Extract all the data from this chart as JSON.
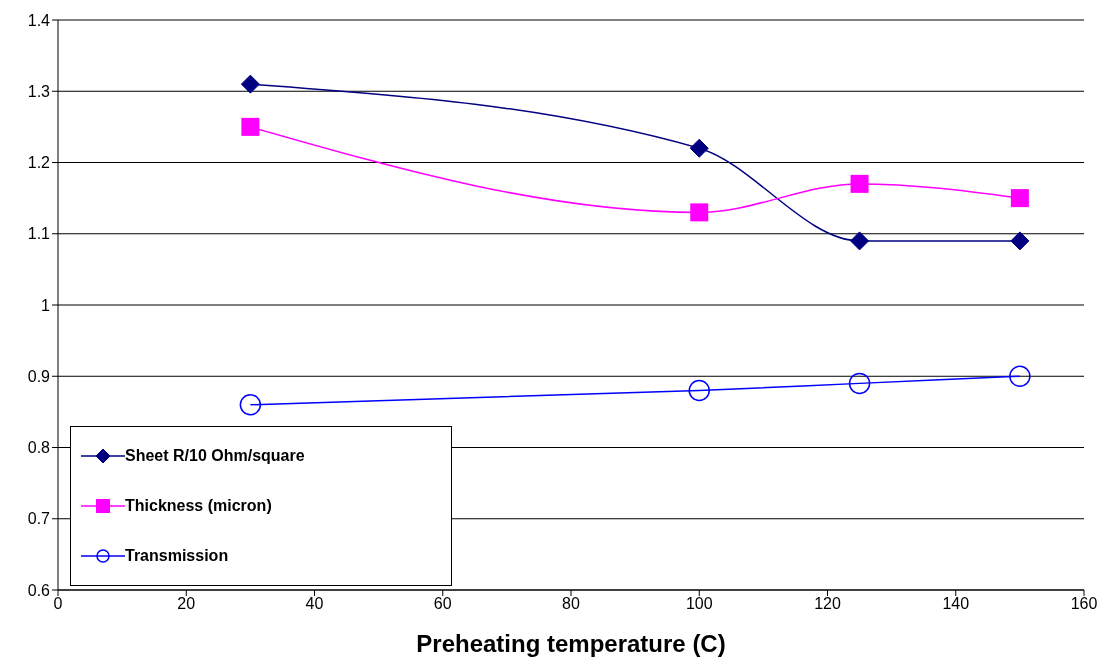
{
  "chart_data": {
    "type": "line",
    "xlabel": "Preheating temperature (C)",
    "xlim": [
      0,
      160
    ],
    "xticks": [
      0,
      20,
      40,
      60,
      80,
      100,
      120,
      140,
      160
    ],
    "ylim": [
      0.6,
      1.4
    ],
    "yticks": [
      0.6,
      0.7,
      0.8,
      0.9,
      1,
      1.1,
      1.2,
      1.3,
      1.4
    ],
    "grid": "y",
    "legend": "bottom left",
    "line_style": "solid",
    "series": [
      {
        "name": "Sheet R/10 Ohm/square",
        "color": "#000080",
        "marker": "diamond",
        "x": [
          30,
          100,
          125,
          150
        ],
        "values": [
          1.31,
          1.22,
          1.09,
          1.09
        ]
      },
      {
        "name": "Thickness (micron)",
        "color": "#ff00ff",
        "marker": "square",
        "x": [
          30,
          100,
          125,
          150
        ],
        "values": [
          1.25,
          1.13,
          1.17,
          1.15
        ]
      },
      {
        "name": "Transmission",
        "color": "#0000ff",
        "marker": "circle",
        "x": [
          30,
          100,
          125,
          150
        ],
        "values": [
          0.86,
          0.88,
          0.89,
          0.9
        ]
      }
    ]
  }
}
